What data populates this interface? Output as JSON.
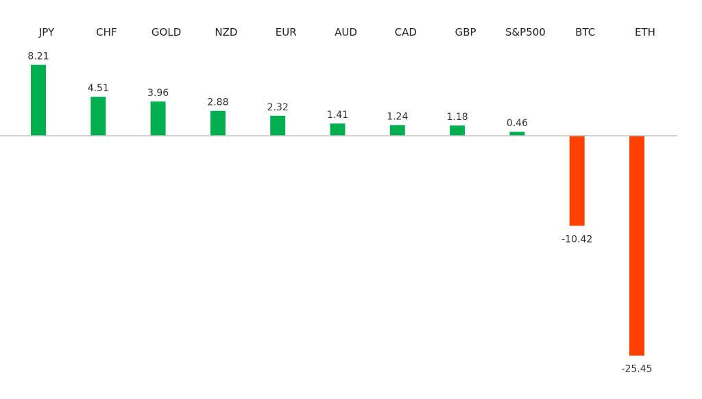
{
  "chart_data": {
    "type": "bar",
    "title": "",
    "xlabel": "",
    "ylabel": "",
    "categories": [
      "JPY",
      "CHF",
      "GOLD",
      "NZD",
      "EUR",
      "AUD",
      "CAD",
      "GBP",
      "S&P500",
      "BTC",
      "ETH"
    ],
    "values": [
      8.21,
      4.51,
      3.96,
      2.88,
      2.32,
      1.41,
      1.24,
      1.18,
      0.46,
      -10.42,
      -25.45
    ],
    "value_labels": [
      "8.21",
      "4.51",
      "3.96",
      "2.88",
      "2.32",
      "1.41",
      "1.24",
      "1.18",
      "0.46",
      "-10.42",
      "-25.45"
    ],
    "ylim": [
      -25.45,
      8.21
    ],
    "grid": false,
    "legend": "none",
    "colors": {
      "positive": "#00b050",
      "negative": "#ff4000",
      "axis": "#bfbfbf"
    }
  }
}
